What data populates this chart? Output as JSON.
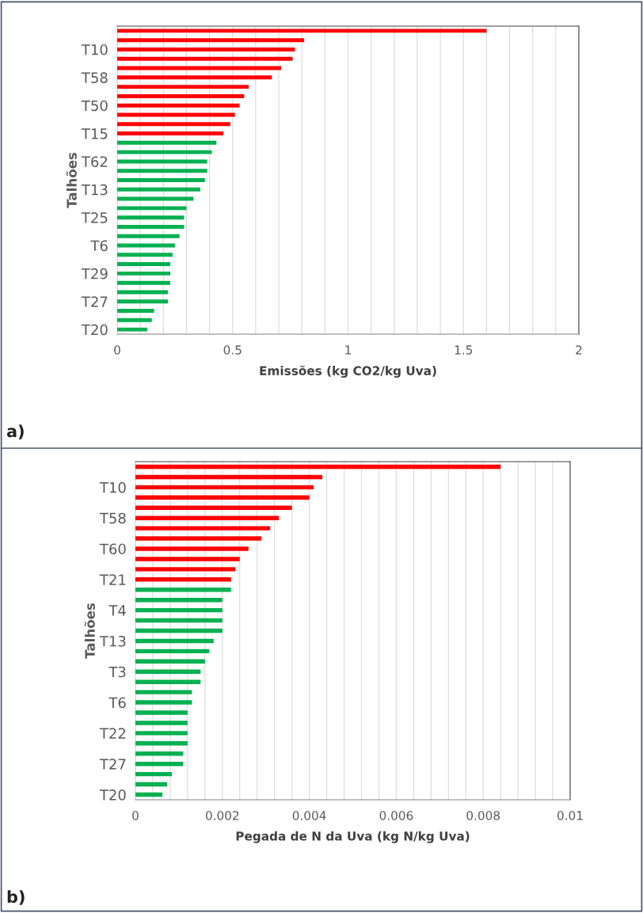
{
  "chart_data": [
    {
      "type": "bar",
      "orientation": "horizontal",
      "ylabel": "Talhões",
      "xlabel": "Emissões (kg CO2/kg Uva)",
      "annotations": [
        "a)"
      ],
      "categories": [
        null,
        null,
        "T10",
        null,
        null,
        "T58",
        null,
        null,
        "T50",
        null,
        null,
        "T15",
        null,
        null,
        "T62",
        null,
        null,
        "T13",
        null,
        null,
        "T25",
        null,
        null,
        "T6",
        null,
        null,
        "T29",
        null,
        null,
        "T27",
        null,
        null,
        "T20"
      ],
      "values": [
        1.6,
        0.81,
        0.77,
        0.76,
        0.71,
        0.67,
        0.57,
        0.55,
        0.53,
        0.51,
        0.49,
        0.46,
        0.43,
        0.41,
        0.39,
        0.39,
        0.38,
        0.36,
        0.33,
        0.3,
        0.29,
        0.29,
        0.27,
        0.25,
        0.24,
        0.23,
        0.23,
        0.23,
        0.22,
        0.22,
        0.16,
        0.15,
        0.13
      ],
      "colors": [
        "#ff0000",
        "#ff0000",
        "#ff0000",
        "#ff0000",
        "#ff0000",
        "#ff0000",
        "#ff0000",
        "#ff0000",
        "#ff0000",
        "#ff0000",
        "#ff0000",
        "#ff0000",
        "#00b050",
        "#00b050",
        "#00b050",
        "#00b050",
        "#00b050",
        "#00b050",
        "#00b050",
        "#00b050",
        "#00b050",
        "#00b050",
        "#00b050",
        "#00b050",
        "#00b050",
        "#00b050",
        "#00b050",
        "#00b050",
        "#00b050",
        "#00b050",
        "#00b050",
        "#00b050",
        "#00b050"
      ],
      "xlim": [
        0,
        2
      ],
      "xticks": [
        0,
        {
          "value": 0.1,
          "label": null
        },
        {
          "value": 0.2,
          "label": null
        },
        {
          "value": 0.3,
          "label": null
        },
        {
          "value": 0.4,
          "label": null
        },
        0.5,
        {
          "value": 0.6,
          "label": null
        },
        {
          "value": 0.7,
          "label": null
        },
        {
          "value": 0.8,
          "label": null
        },
        {
          "value": 0.9,
          "label": null
        },
        1,
        {
          "value": 1.1,
          "label": null
        },
        {
          "value": 1.2,
          "label": null
        },
        {
          "value": 1.3,
          "label": null
        },
        {
          "value": 1.4,
          "label": null
        },
        1.5,
        {
          "value": 1.6,
          "label": null
        },
        {
          "value": 1.7,
          "label": null
        },
        {
          "value": 1.8,
          "label": null
        },
        {
          "value": 1.9,
          "label": null
        },
        2
      ],
      "grid": "x",
      "legend": false
    },
    {
      "type": "bar",
      "orientation": "horizontal",
      "ylabel": "Talhões",
      "xlabel": "Pegada de N da Uva (kg N/kg Uva)",
      "annotations": [
        "b)"
      ],
      "categories": [
        null,
        null,
        "T10",
        null,
        null,
        "T58",
        null,
        null,
        "T60",
        null,
        null,
        "T21",
        null,
        null,
        "T4",
        null,
        null,
        "T13",
        null,
        null,
        "T3",
        null,
        null,
        "T6",
        null,
        null,
        "T22",
        null,
        null,
        "T27",
        null,
        null,
        "T20"
      ],
      "values": [
        0.0084,
        0.0043,
        0.0041,
        0.004,
        0.0036,
        0.0033,
        0.0031,
        0.0029,
        0.0026,
        0.0024,
        0.0023,
        0.0022,
        0.0022,
        0.002,
        0.002,
        0.002,
        0.002,
        0.0018,
        0.0017,
        0.0016,
        0.0015,
        0.0015,
        0.0013,
        0.0013,
        0.0012,
        0.0012,
        0.0012,
        0.0012,
        0.0011,
        0.0011,
        0.00084,
        0.00073,
        0.00062
      ],
      "colors": [
        "#ff0000",
        "#ff0000",
        "#ff0000",
        "#ff0000",
        "#ff0000",
        "#ff0000",
        "#ff0000",
        "#ff0000",
        "#ff0000",
        "#ff0000",
        "#ff0000",
        "#ff0000",
        "#00b050",
        "#00b050",
        "#00b050",
        "#00b050",
        "#00b050",
        "#00b050",
        "#00b050",
        "#00b050",
        "#00b050",
        "#00b050",
        "#00b050",
        "#00b050",
        "#00b050",
        "#00b050",
        "#00b050",
        "#00b050",
        "#00b050",
        "#00b050",
        "#00b050",
        "#00b050",
        "#00b050"
      ],
      "xlim": [
        0,
        0.01
      ],
      "xticks": [
        0,
        {
          "value": 0.0004,
          "label": null
        },
        {
          "value": 0.0008,
          "label": null
        },
        {
          "value": 0.0012,
          "label": null
        },
        {
          "value": 0.0016,
          "label": null
        },
        0.002,
        {
          "value": 0.0024,
          "label": null
        },
        {
          "value": 0.0028,
          "label": null
        },
        {
          "value": 0.0032,
          "label": null
        },
        {
          "value": 0.0036,
          "label": null
        },
        0.004,
        {
          "value": 0.0044,
          "label": null
        },
        {
          "value": 0.0048,
          "label": null
        },
        {
          "value": 0.0052,
          "label": null
        },
        {
          "value": 0.0056,
          "label": null
        },
        0.006,
        {
          "value": 0.0064,
          "label": null
        },
        {
          "value": 0.0068,
          "label": null
        },
        {
          "value": 0.0072,
          "label": null
        },
        {
          "value": 0.0076,
          "label": null
        },
        0.008,
        {
          "value": 0.0084,
          "label": null
        },
        {
          "value": 0.0088,
          "label": null
        },
        {
          "value": 0.0092,
          "label": null
        },
        {
          "value": 0.0096,
          "label": null
        },
        0.01
      ],
      "grid": "x",
      "legend": false
    }
  ]
}
